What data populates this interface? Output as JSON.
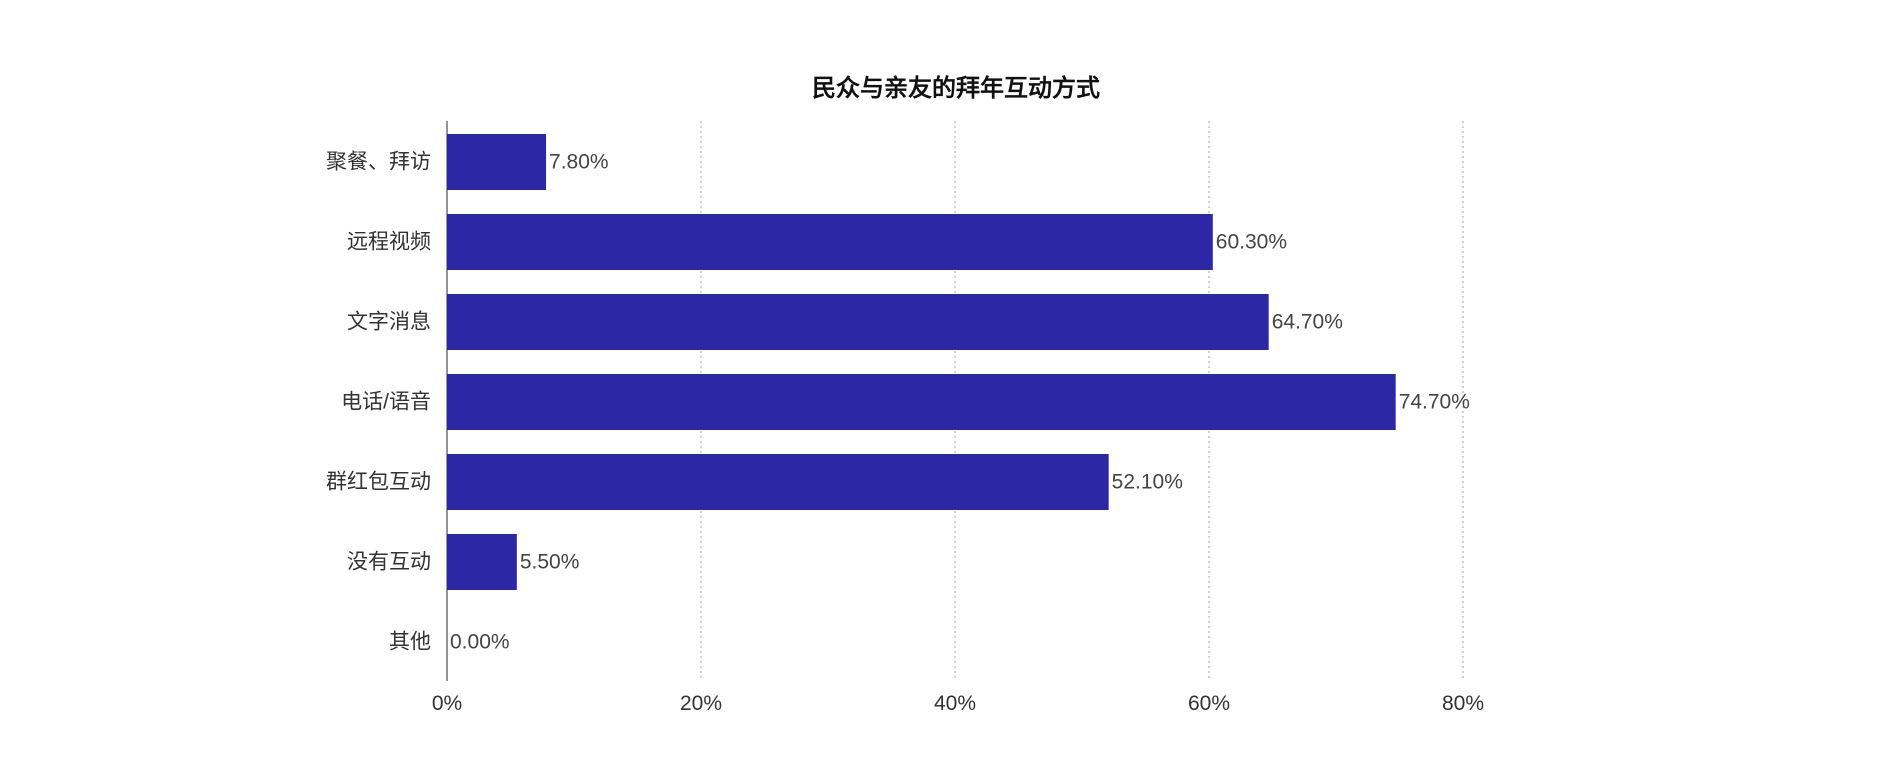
{
  "chart_data": {
    "type": "bar",
    "orientation": "horizontal",
    "title": "民众与亲友的拜年互动方式",
    "categories": [
      "聚餐、拜访",
      "远程视频",
      "文字消息",
      "电话/语音",
      "群红包互动",
      "没有互动",
      "其他"
    ],
    "values": [
      7.8,
      60.3,
      64.7,
      74.7,
      52.1,
      5.5,
      0.0
    ],
    "data_labels": [
      "7.80%",
      "60.30%",
      "64.70%",
      "74.70%",
      "52.10%",
      "5.50%",
      "0.00%"
    ],
    "xticks": [
      0,
      20,
      40,
      60,
      80
    ],
    "xtick_labels": [
      "0%",
      "20%",
      "40%",
      "60%",
      "80%"
    ],
    "xlim": [
      0,
      80
    ],
    "xlabel": "",
    "ylabel": "",
    "grid": "vertical-dotted",
    "legend": "none",
    "colors": {
      "bar": "#2B27A5",
      "axis": "#666666",
      "grid": "#b5b5b5"
    }
  }
}
